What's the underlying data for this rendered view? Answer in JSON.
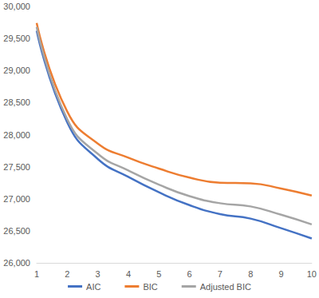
{
  "chart_data": {
    "type": "line",
    "categories": [
      "1",
      "2",
      "3",
      "4",
      "5",
      "6",
      "7",
      "8",
      "9",
      "10"
    ],
    "series": [
      {
        "name": "AIC",
        "color": "#4472c4",
        "values": [
          29620,
          28190,
          27620,
          27340,
          27100,
          26900,
          26760,
          26690,
          26540,
          26380
        ]
      },
      {
        "name": "BIC",
        "color": "#ed7d31",
        "values": [
          29740,
          28360,
          27860,
          27640,
          27470,
          27330,
          27250,
          27240,
          27160,
          27050
        ]
      },
      {
        "name": "Adjusted BIC",
        "color": "#a5a5a5",
        "values": [
          29680,
          28240,
          27700,
          27440,
          27220,
          27040,
          26930,
          26880,
          26750,
          26600
        ]
      }
    ],
    "ylim": [
      26000,
      30000
    ],
    "yticks": [
      26000,
      26500,
      27000,
      27500,
      28000,
      28500,
      29000,
      29500,
      30000
    ],
    "grid": false,
    "legend": "bottom"
  }
}
